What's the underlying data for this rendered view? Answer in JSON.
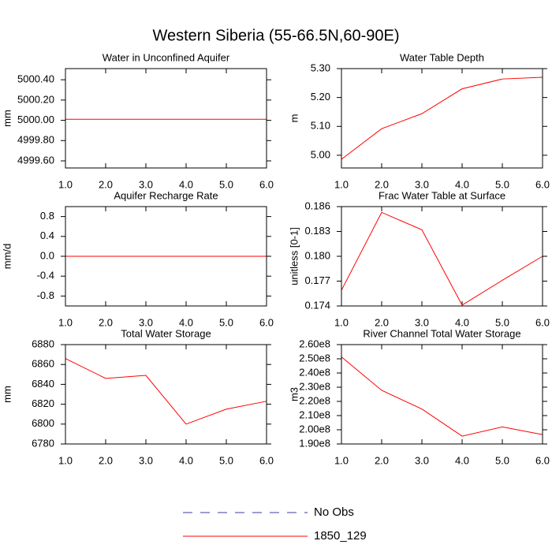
{
  "title": "Western Siberia (55-66.5N,60-90E)",
  "legend": [
    {
      "name": "No Obs",
      "color": "#3a3aa8",
      "dash": true
    },
    {
      "name": "1850_129",
      "color": "#ff0000",
      "dash": false
    }
  ],
  "chart_data": [
    {
      "type": "line",
      "title": "Water in Unconfined Aquifer",
      "y_label": "mm",
      "x": [
        1,
        2,
        3,
        4,
        5,
        6
      ],
      "values": [
        5000.01,
        5000.01,
        5000.01,
        5000.01,
        5000.01,
        5000.01
      ],
      "color": "#ff0000",
      "xlim": [
        1,
        6
      ],
      "xticks": [
        {
          "value": 1,
          "label": "1.0"
        },
        {
          "value": 2,
          "label": "2.0"
        },
        {
          "value": 3,
          "label": "3.0"
        },
        {
          "value": 4,
          "label": "4.0"
        },
        {
          "value": 5,
          "label": "5.0"
        },
        {
          "value": 6,
          "label": "6.0"
        }
      ],
      "ylim": [
        4999.53,
        5000.51
      ],
      "yticks": [
        {
          "value": 4999.6,
          "label": "4999.60"
        },
        {
          "value": 4999.8,
          "label": "4999.80"
        },
        {
          "value": 5000,
          "label": "5000.00"
        },
        {
          "value": 5000.2,
          "label": "5000.20"
        },
        {
          "value": 5000.4,
          "label": "5000.40"
        }
      ]
    },
    {
      "type": "line",
      "title": "Water Table Depth",
      "y_label": "m",
      "x": [
        1,
        2,
        3,
        4,
        5,
        6
      ],
      "values": [
        4.986,
        5.092,
        5.144,
        5.23,
        5.264,
        5.27
      ],
      "color": "#ff0000",
      "xlim": [
        1,
        6
      ],
      "xticks": [
        {
          "value": 1,
          "label": "1.0"
        },
        {
          "value": 2,
          "label": "2.0"
        },
        {
          "value": 3,
          "label": "3.0"
        },
        {
          "value": 4,
          "label": "4.0"
        },
        {
          "value": 5,
          "label": "5.0"
        },
        {
          "value": 6,
          "label": "6.0"
        }
      ],
      "ylim": [
        4.956,
        5.3
      ],
      "yticks": [
        {
          "value": 5,
          "label": "5.00"
        },
        {
          "value": 5.1,
          "label": "5.10"
        },
        {
          "value": 5.2,
          "label": "5.20"
        },
        {
          "value": 5.3,
          "label": "5.30"
        }
      ]
    },
    {
      "type": "line",
      "title": "Aquifer Recharge Rate",
      "y_label": "mm/d",
      "x": [
        1,
        2,
        3,
        4,
        5,
        6
      ],
      "values": [
        0,
        0,
        0,
        0,
        0,
        0
      ],
      "color": "#ff0000",
      "xlim": [
        1,
        6
      ],
      "xticks": [
        {
          "value": 1,
          "label": "1.0"
        },
        {
          "value": 2,
          "label": "2.0"
        },
        {
          "value": 3,
          "label": "3.0"
        },
        {
          "value": 4,
          "label": "4.0"
        },
        {
          "value": 5,
          "label": "5.0"
        },
        {
          "value": 6,
          "label": "6.0"
        }
      ],
      "ylim": [
        -1,
        1
      ],
      "yticks": [
        -0.8,
        -0.4,
        {
          "value": 0,
          "label": "0.0"
        },
        0.4,
        0.8
      ]
    },
    {
      "type": "line",
      "title": "Frac Water Table at Surface",
      "y_label": "unitless [0-1]",
      "x": [
        1,
        2,
        3,
        4,
        5,
        6
      ],
      "values": [
        0.1759,
        0.1853,
        0.1832,
        0.1741,
        0.1771,
        0.18
      ],
      "color": "#ff0000",
      "xlim": [
        1,
        6
      ],
      "xticks": [
        {
          "value": 1,
          "label": "1.0"
        },
        {
          "value": 2,
          "label": "2.0"
        },
        {
          "value": 3,
          "label": "3.0"
        },
        {
          "value": 4,
          "label": "4.0"
        },
        {
          "value": 5,
          "label": "5.0"
        },
        {
          "value": 6,
          "label": "6.0"
        }
      ],
      "ylim": [
        0.174,
        0.186
      ],
      "yticks": [
        0.174,
        0.177,
        {
          "value": 0.18,
          "label": "0.180"
        },
        0.183,
        0.186
      ]
    },
    {
      "type": "line",
      "title": "Total Water Storage",
      "y_label": "mm",
      "x": [
        1,
        2,
        3,
        4,
        5,
        6
      ],
      "values": [
        6866,
        6846,
        6849,
        6800,
        6815,
        6823
      ],
      "color": "#ff0000",
      "xlim": [
        1,
        6
      ],
      "xticks": [
        {
          "value": 1,
          "label": "1.0"
        },
        {
          "value": 2,
          "label": "2.0"
        },
        {
          "value": 3,
          "label": "3.0"
        },
        {
          "value": 4,
          "label": "4.0"
        },
        {
          "value": 5,
          "label": "5.0"
        },
        {
          "value": 6,
          "label": "6.0"
        }
      ],
      "ylim": [
        6780,
        6880
      ],
      "yticks": [
        6780,
        6800,
        6820,
        6840,
        6860,
        6880
      ]
    },
    {
      "type": "line",
      "title": "River Channel Total Water Storage",
      "y_label": "m3",
      "x": [
        1,
        2,
        3,
        4,
        5,
        6
      ],
      "values": [
        251300000,
        227800000,
        214600000,
        195500000,
        202000000,
        196600000
      ],
      "color": "#ff0000",
      "xlim": [
        1,
        6
      ],
      "xticks": [
        {
          "value": 1,
          "label": "1.0"
        },
        {
          "value": 2,
          "label": "2.0"
        },
        {
          "value": 3,
          "label": "3.0"
        },
        {
          "value": 4,
          "label": "4.0"
        },
        {
          "value": 5,
          "label": "5.0"
        },
        {
          "value": 6,
          "label": "6.0"
        }
      ],
      "ylim": [
        190000000,
        260000000
      ],
      "yticks": [
        {
          "value": 190000000,
          "label": "1.90e8"
        },
        {
          "value": 200000000,
          "label": "2.00e8"
        },
        {
          "value": 210000000,
          "label": "2.10e8"
        },
        {
          "value": 220000000,
          "label": "2.20e8"
        },
        {
          "value": 230000000,
          "label": "2.30e8"
        },
        {
          "value": 240000000,
          "label": "2.40e8"
        },
        {
          "value": 250000000,
          "label": "2.50e8"
        },
        {
          "value": 260000000,
          "label": "2.60e8"
        }
      ]
    }
  ]
}
